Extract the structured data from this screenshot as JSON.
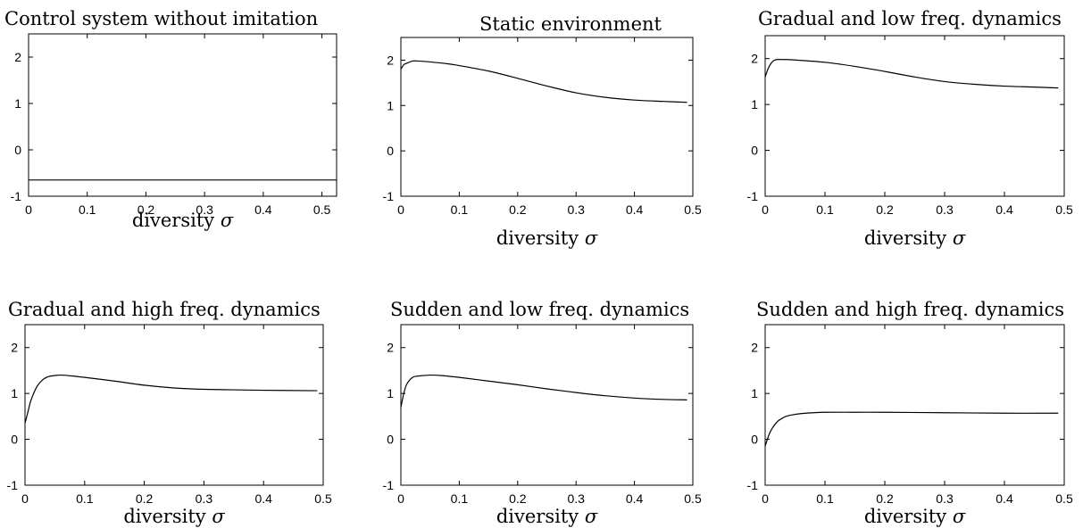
{
  "chart_data": [
    {
      "type": "line",
      "title": "Control system without imitation",
      "xlabel": "diversity",
      "xlabel_symbol": "σ",
      "xlim": [
        0,
        0.525
      ],
      "ylim": [
        -1,
        2.5
      ],
      "xticks": [
        "0",
        "0.1",
        "0.2",
        "0.3",
        "0.4",
        "0.5"
      ],
      "yticks": [
        "-1",
        "0",
        "1",
        "2"
      ],
      "series": [
        {
          "x": [
            0,
            0.1,
            0.2,
            0.3,
            0.4,
            0.525
          ],
          "y": [
            -0.65,
            -0.65,
            -0.65,
            -0.65,
            -0.65,
            -0.65
          ]
        }
      ]
    },
    {
      "type": "line",
      "title": "Static environment",
      "xlabel": "diversity",
      "xlabel_symbol": "σ",
      "xlim": [
        0,
        0.5
      ],
      "ylim": [
        -1,
        2.5
      ],
      "xticks": [
        "0",
        "0.1",
        "0.2",
        "0.3",
        "0.4",
        "0.5"
      ],
      "yticks": [
        "-1",
        "0",
        "1",
        "2"
      ],
      "series": [
        {
          "x": [
            0,
            0.005,
            0.01,
            0.02,
            0.03,
            0.05,
            0.08,
            0.1,
            0.15,
            0.2,
            0.25,
            0.3,
            0.35,
            0.4,
            0.45,
            0.49
          ],
          "y": [
            1.8,
            1.9,
            1.93,
            1.98,
            1.98,
            1.96,
            1.92,
            1.88,
            1.76,
            1.6,
            1.43,
            1.28,
            1.18,
            1.12,
            1.09,
            1.07
          ]
        }
      ]
    },
    {
      "type": "line",
      "title": "Gradual and low freq. dynamics",
      "xlabel": "diversity",
      "xlabel_symbol": "σ",
      "xlim": [
        0,
        0.5
      ],
      "ylim": [
        -1,
        2.5
      ],
      "xticks": [
        "0",
        "0.1",
        "0.2",
        "0.3",
        "0.4",
        "0.5"
      ],
      "yticks": [
        "-1",
        "0",
        "1",
        "2"
      ],
      "series": [
        {
          "x": [
            0,
            0.005,
            0.01,
            0.015,
            0.02,
            0.03,
            0.05,
            0.1,
            0.15,
            0.2,
            0.25,
            0.3,
            0.35,
            0.4,
            0.45,
            0.49
          ],
          "y": [
            1.6,
            1.78,
            1.9,
            1.96,
            1.98,
            1.98,
            1.97,
            1.92,
            1.83,
            1.72,
            1.6,
            1.5,
            1.44,
            1.4,
            1.38,
            1.36
          ]
        }
      ]
    },
    {
      "type": "line",
      "title": "Gradual and high freq. dynamics",
      "xlabel": "diversity",
      "xlabel_symbol": "σ",
      "xlim": [
        0,
        0.5
      ],
      "ylim": [
        -1,
        2.5
      ],
      "xticks": [
        "0",
        "0.1",
        "0.2",
        "0.3",
        "0.4",
        "0.5"
      ],
      "yticks": [
        "-1",
        "0",
        "1",
        "2"
      ],
      "series": [
        {
          "x": [
            0,
            0.005,
            0.01,
            0.02,
            0.03,
            0.04,
            0.05,
            0.06,
            0.08,
            0.1,
            0.15,
            0.2,
            0.25,
            0.3,
            0.4,
            0.49
          ],
          "y": [
            0.35,
            0.6,
            0.85,
            1.15,
            1.3,
            1.37,
            1.39,
            1.4,
            1.38,
            1.35,
            1.27,
            1.18,
            1.12,
            1.09,
            1.07,
            1.06
          ]
        }
      ]
    },
    {
      "type": "line",
      "title": "Sudden and low freq. dynamics",
      "xlabel": "diversity",
      "xlabel_symbol": "σ",
      "xlim": [
        0,
        0.5
      ],
      "ylim": [
        -1,
        2.5
      ],
      "xticks": [
        "0",
        "0.1",
        "0.2",
        "0.3",
        "0.4",
        "0.5"
      ],
      "yticks": [
        "-1",
        "0",
        "1",
        "2"
      ],
      "series": [
        {
          "x": [
            0,
            0.005,
            0.01,
            0.02,
            0.03,
            0.05,
            0.07,
            0.1,
            0.15,
            0.2,
            0.25,
            0.3,
            0.35,
            0.4,
            0.45,
            0.49
          ],
          "y": [
            0.7,
            1.0,
            1.2,
            1.35,
            1.38,
            1.4,
            1.39,
            1.35,
            1.27,
            1.19,
            1.1,
            1.02,
            0.95,
            0.9,
            0.87,
            0.86
          ]
        }
      ]
    },
    {
      "type": "line",
      "title": "Sudden and high freq. dynamics",
      "xlabel": "diversity",
      "xlabel_symbol": "σ",
      "xlim": [
        0,
        0.5
      ],
      "ylim": [
        -1,
        2.5
      ],
      "xticks": [
        "0",
        "0.1",
        "0.2",
        "0.3",
        "0.4",
        "0.5"
      ],
      "yticks": [
        "-1",
        "0",
        "1",
        "2"
      ],
      "series": [
        {
          "x": [
            0,
            0.005,
            0.01,
            0.02,
            0.03,
            0.04,
            0.06,
            0.08,
            0.1,
            0.15,
            0.2,
            0.3,
            0.4,
            0.49
          ],
          "y": [
            -0.15,
            0.05,
            0.2,
            0.38,
            0.47,
            0.52,
            0.56,
            0.58,
            0.59,
            0.59,
            0.59,
            0.58,
            0.57,
            0.57
          ]
        }
      ]
    }
  ]
}
